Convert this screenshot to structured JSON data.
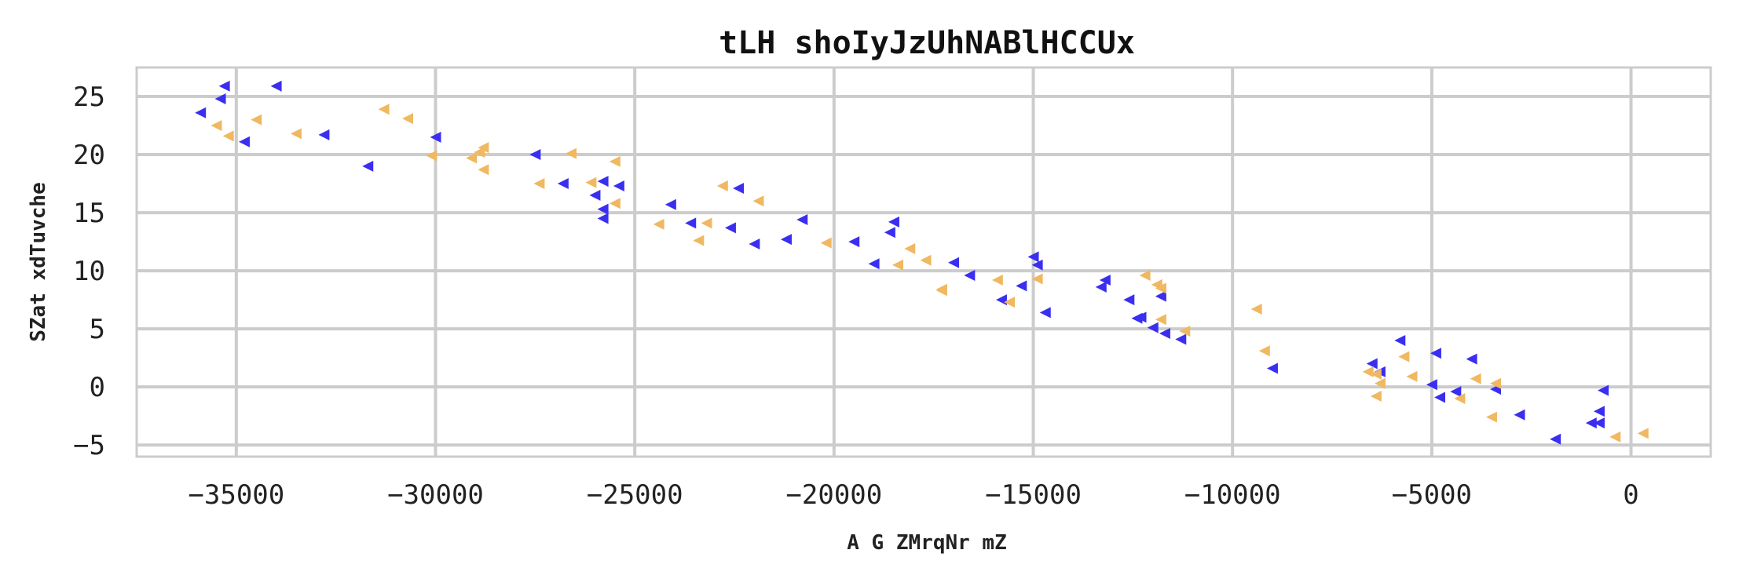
{
  "chart_data": {
    "type": "scatter",
    "title": "tLH shoIyJzUhNABlHCCUx",
    "xlabel": "A G ZMrqNr mZ",
    "ylabel": "SZat xdTuvche",
    "xlim": [
      -37500,
      2000
    ],
    "ylim": [
      -6,
      27.5
    ],
    "x_ticks": [
      -35000,
      -30000,
      -25000,
      -20000,
      -15000,
      -10000,
      -5000,
      0
    ],
    "x_tick_labels": [
      "−35000",
      "−30000",
      "−25000",
      "−20000",
      "−15000",
      "−10000",
      "−5000",
      "0"
    ],
    "y_ticks": [
      -5,
      0,
      5,
      10,
      15,
      20,
      25
    ],
    "y_tick_labels": [
      "−5",
      "0",
      "5",
      "10",
      "15",
      "20",
      "25"
    ],
    "grid": true,
    "marker": "triangle-left",
    "series": [
      {
        "color": "#3a2ef0",
        "points": [
          [
            -35300,
            25.9
          ],
          [
            -35400,
            24.8
          ],
          [
            -35900,
            23.6
          ],
          [
            -34800,
            21.1
          ],
          [
            -34000,
            25.9
          ],
          [
            -32800,
            21.7
          ],
          [
            -31700,
            19.0
          ],
          [
            -30000,
            21.5
          ],
          [
            -27500,
            20.0
          ],
          [
            -26800,
            17.5
          ],
          [
            -26000,
            16.5
          ],
          [
            -25800,
            17.7
          ],
          [
            -25800,
            15.3
          ],
          [
            -25800,
            14.5
          ],
          [
            -25400,
            17.3
          ],
          [
            -24100,
            15.7
          ],
          [
            -23600,
            14.1
          ],
          [
            -22600,
            13.7
          ],
          [
            -22400,
            17.1
          ],
          [
            -22000,
            12.3
          ],
          [
            -21200,
            12.7
          ],
          [
            -20800,
            14.4
          ],
          [
            -19500,
            12.5
          ],
          [
            -19000,
            10.6
          ],
          [
            -18600,
            13.3
          ],
          [
            -18500,
            14.2
          ],
          [
            -17000,
            10.7
          ],
          [
            -16600,
            9.6
          ],
          [
            -15800,
            7.5
          ],
          [
            -15300,
            8.7
          ],
          [
            -15000,
            11.2
          ],
          [
            -14900,
            10.5
          ],
          [
            -14700,
            6.4
          ],
          [
            -13300,
            8.6
          ],
          [
            -13200,
            9.2
          ],
          [
            -12600,
            7.5
          ],
          [
            -12400,
            5.9
          ],
          [
            -12300,
            6.0
          ],
          [
            -12000,
            5.1
          ],
          [
            -11800,
            7.8
          ],
          [
            -11700,
            4.6
          ],
          [
            -11300,
            4.1
          ],
          [
            -9000,
            1.6
          ],
          [
            -6500,
            2.0
          ],
          [
            -6300,
            1.3
          ],
          [
            -5800,
            4.0
          ],
          [
            -5000,
            0.2
          ],
          [
            -4900,
            2.9
          ],
          [
            -4800,
            -0.9
          ],
          [
            -4400,
            -0.4
          ],
          [
            -4000,
            2.4
          ],
          [
            -3400,
            -0.2
          ],
          [
            -2800,
            -2.4
          ],
          [
            -1900,
            -4.5
          ],
          [
            -1000,
            -3.1
          ],
          [
            -800,
            -3.1
          ],
          [
            -800,
            -2.1
          ],
          [
            -700,
            -0.3
          ]
        ]
      },
      {
        "color": "#f0b860",
        "points": [
          [
            -35500,
            22.5
          ],
          [
            -35200,
            21.6
          ],
          [
            -34500,
            23.0
          ],
          [
            -33500,
            21.8
          ],
          [
            -31300,
            23.9
          ],
          [
            -30700,
            23.1
          ],
          [
            -30100,
            19.9
          ],
          [
            -29100,
            19.7
          ],
          [
            -28900,
            20.2
          ],
          [
            -28800,
            20.6
          ],
          [
            -28800,
            18.7
          ],
          [
            -27400,
            17.5
          ],
          [
            -26600,
            20.1
          ],
          [
            -26100,
            17.6
          ],
          [
            -25500,
            19.4
          ],
          [
            -25500,
            15.8
          ],
          [
            -24400,
            14.0
          ],
          [
            -23400,
            12.6
          ],
          [
            -23200,
            14.1
          ],
          [
            -22800,
            17.3
          ],
          [
            -21900,
            16.0
          ],
          [
            -20200,
            12.4
          ],
          [
            -18400,
            10.5
          ],
          [
            -18100,
            11.9
          ],
          [
            -17700,
            10.9
          ],
          [
            -17300,
            8.3
          ],
          [
            -17300,
            8.4
          ],
          [
            -15900,
            9.2
          ],
          [
            -15600,
            7.3
          ],
          [
            -14900,
            9.3
          ],
          [
            -12200,
            9.6
          ],
          [
            -11900,
            8.8
          ],
          [
            -11800,
            8.5
          ],
          [
            -11800,
            5.8
          ],
          [
            -11200,
            4.8
          ],
          [
            -9400,
            6.7
          ],
          [
            -9200,
            3.1
          ],
          [
            -6600,
            1.3
          ],
          [
            -6400,
            1.1
          ],
          [
            -6400,
            -0.8
          ],
          [
            -6300,
            0.3
          ],
          [
            -5700,
            2.6
          ],
          [
            -5500,
            0.9
          ],
          [
            -4300,
            -1.0
          ],
          [
            -3900,
            0.7
          ],
          [
            -3500,
            -2.6
          ],
          [
            -3400,
            0.3
          ],
          [
            -400,
            -4.3
          ],
          [
            300,
            -4.0
          ]
        ]
      }
    ]
  }
}
